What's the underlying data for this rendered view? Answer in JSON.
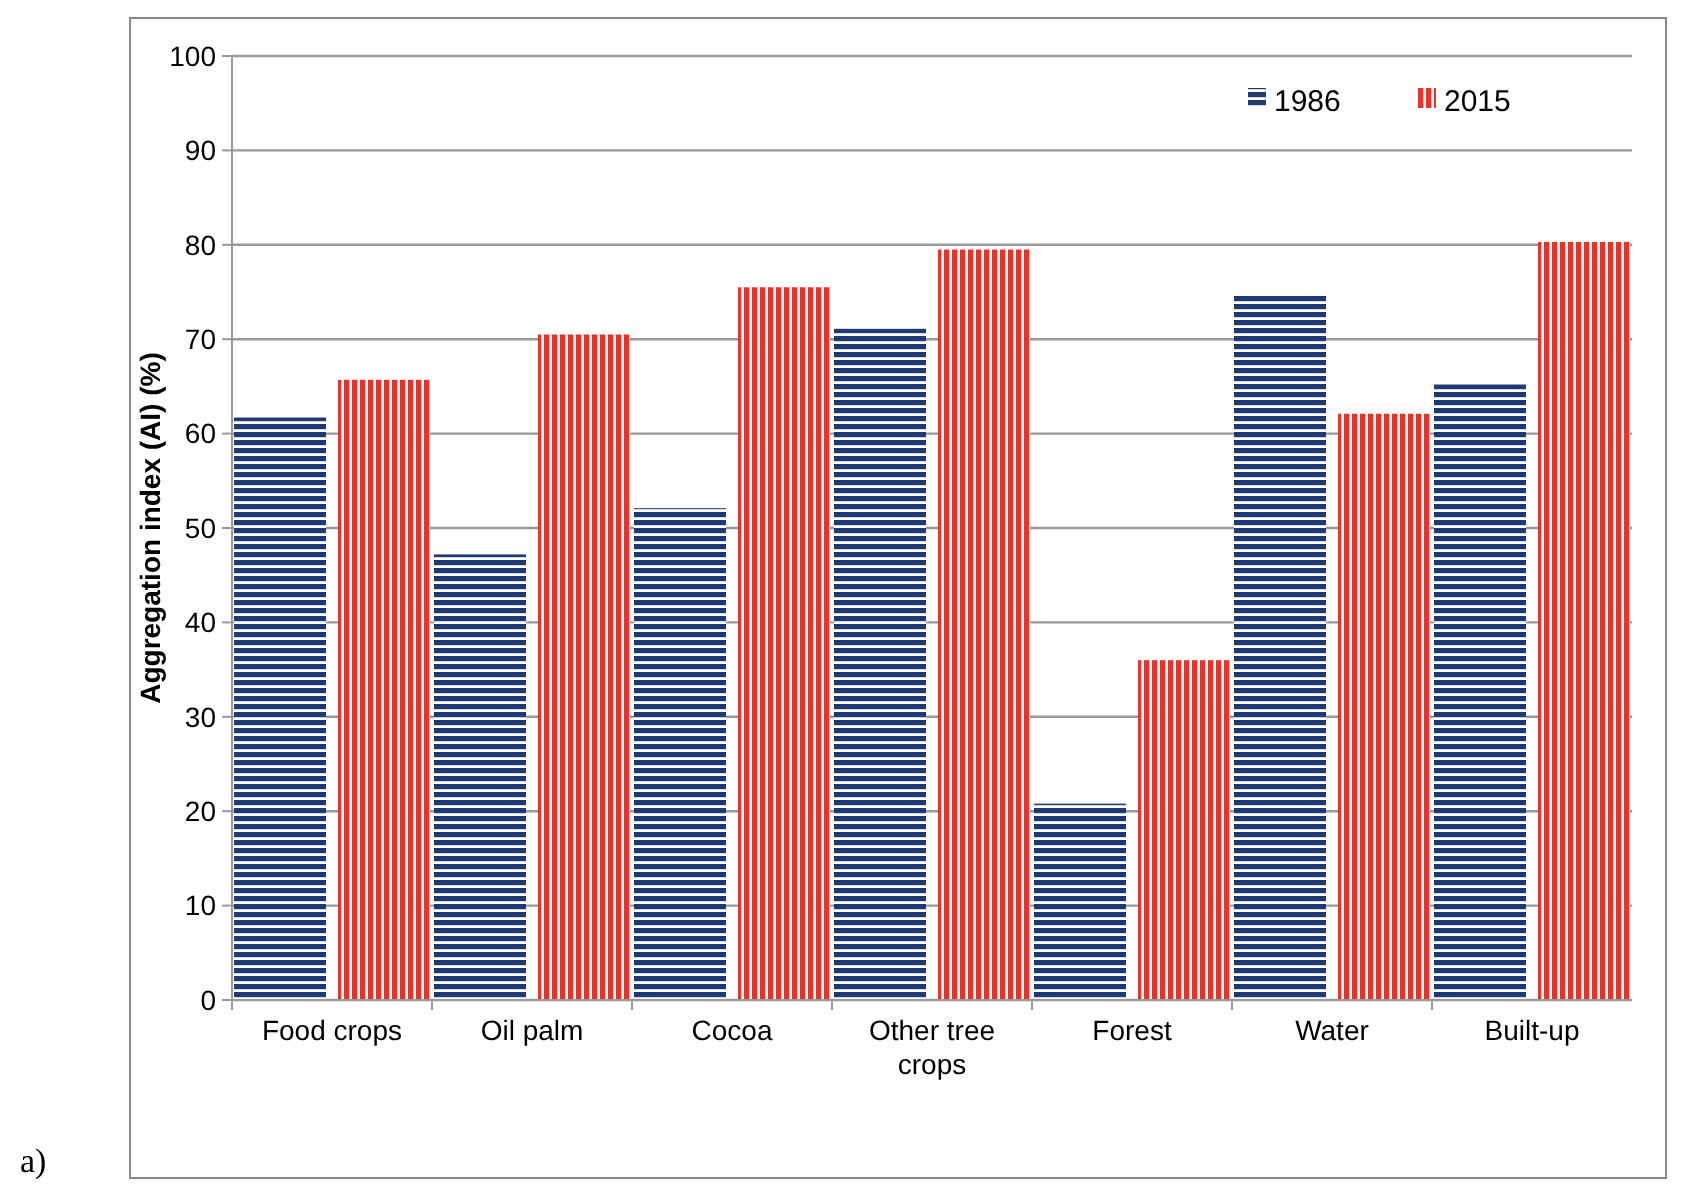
{
  "chart_data": {
    "type": "bar",
    "ylabel": "Aggregation index (AI) (%)",
    "categories": [
      "Food crops",
      "Oil palm",
      "Cocoa",
      "Other tree crops",
      "Forest",
      "Water",
      "Built-up"
    ],
    "series": [
      {
        "name": "1986",
        "color": "#1f3a73",
        "values": [
          61.7,
          47.2,
          52.1,
          71.1,
          20.8,
          74.8,
          65.2
        ]
      },
      {
        "name": "2015",
        "color": "#e8322a",
        "values": [
          65.7,
          70.5,
          75.5,
          79.5,
          36.0,
          62.1,
          80.3
        ]
      }
    ],
    "ylim": [
      0,
      100
    ],
    "yticks": [
      0,
      10,
      20,
      30,
      40,
      50,
      60,
      70,
      80,
      90,
      100
    ],
    "grid": "y",
    "legend": "top right",
    "annotations": [
      "a)"
    ]
  }
}
